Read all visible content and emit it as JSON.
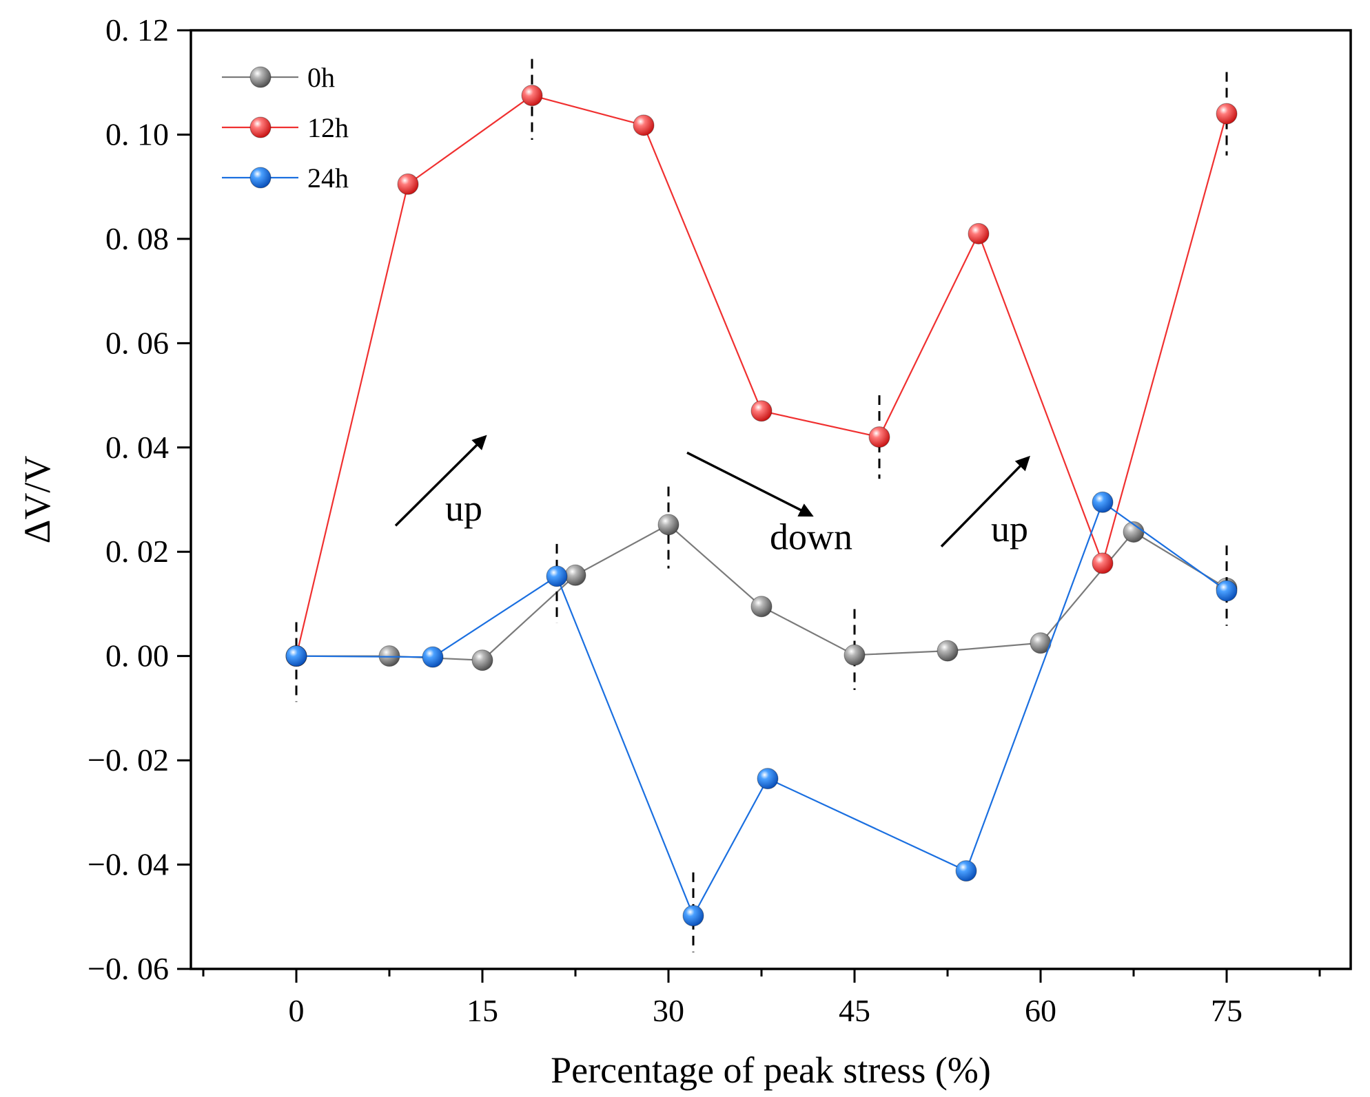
{
  "chart_data": {
    "type": "line",
    "title": "",
    "xlabel": "Percentage of peak stress (%)",
    "ylabel": "ΔV/V",
    "xlim": [
      -8.5,
      85
    ],
    "ylim": [
      -0.06,
      0.12
    ],
    "xticks": [
      0,
      15,
      30,
      45,
      60,
      75
    ],
    "xtick_labels": [
      "0",
      "15",
      "30",
      "45",
      "60",
      "75"
    ],
    "xminor_ticks": [
      -7.5,
      7.5,
      22.5,
      37.5,
      52.5,
      67.5,
      82.5
    ],
    "yticks": [
      -0.06,
      -0.04,
      -0.02,
      0.0,
      0.02,
      0.04,
      0.06,
      0.08,
      0.1,
      0.12
    ],
    "ytick_labels": [
      "−0. 06",
      "−0. 04",
      "−0. 02",
      "0. 00",
      "0. 02",
      "0. 04",
      "0. 06",
      "0. 08",
      "0. 10",
      "0. 12"
    ],
    "legend_position": "top-left",
    "series": [
      {
        "name": "0h",
        "color": "#7a7a7a",
        "x": [
          0,
          7.5,
          15,
          22.5,
          30,
          37.5,
          45,
          52.5,
          60,
          67.5,
          75
        ],
        "y": [
          0.0,
          0.0,
          -0.0008,
          0.0155,
          0.0252,
          0.0095,
          0.0002,
          0.001,
          0.0025,
          0.0238,
          0.013
        ],
        "markers": [
          {
            "x": 30,
            "y": 0.0252,
            "y_low": 0.0168,
            "y_high": 0.0325
          },
          {
            "x": 45,
            "y": 0.0002,
            "y_low": -0.0065,
            "y_high": 0.009
          }
        ]
      },
      {
        "name": "12h",
        "color": "#f03030",
        "x": [
          0,
          9,
          19,
          28,
          37.5,
          47,
          55,
          65,
          75
        ],
        "y": [
          0.0,
          0.0905,
          0.1075,
          0.1018,
          0.047,
          0.042,
          0.081,
          0.0178,
          0.104
        ],
        "markers": [
          {
            "x": 19,
            "y": 0.1075,
            "y_low": 0.099,
            "y_high": 0.1145
          },
          {
            "x": 47,
            "y": 0.042,
            "y_low": 0.034,
            "y_high": 0.05
          },
          {
            "x": 75,
            "y": 0.104,
            "y_low": 0.096,
            "y_high": 0.112
          }
        ]
      },
      {
        "name": "24h",
        "color": "#1a6fe0",
        "x": [
          0,
          11,
          21,
          32,
          38,
          54,
          65,
          75
        ],
        "y": [
          0.0,
          -0.0002,
          0.0153,
          -0.0498,
          -0.0235,
          -0.0412,
          0.0295,
          0.0125
        ],
        "markers": [
          {
            "x": 0,
            "y": 0.0,
            "y_low": -0.0088,
            "y_high": 0.0065
          },
          {
            "x": 21,
            "y": 0.0153,
            "y_low": 0.0063,
            "y_high": 0.0215
          },
          {
            "x": 32,
            "y": -0.0498,
            "y_low": -0.0568,
            "y_high": -0.0415
          },
          {
            "x": 75,
            "y": 0.0125,
            "y_low": 0.0058,
            "y_high": 0.0212
          }
        ]
      }
    ],
    "annotations": [
      {
        "text": "up",
        "x": 13.5,
        "y": 0.026,
        "arrow": {
          "x1": 8,
          "y1": 0.025,
          "x2": 15.2,
          "y2": 0.042
        }
      },
      {
        "text": "down",
        "x": 41.5,
        "y": 0.0205,
        "arrow": {
          "x1": 31.5,
          "y1": 0.039,
          "x2": 41.5,
          "y2": 0.027
        }
      },
      {
        "text": "up",
        "x": 57.5,
        "y": 0.022,
        "arrow": {
          "x1": 52,
          "y1": 0.021,
          "x2": 59,
          "y2": 0.038
        }
      }
    ]
  }
}
